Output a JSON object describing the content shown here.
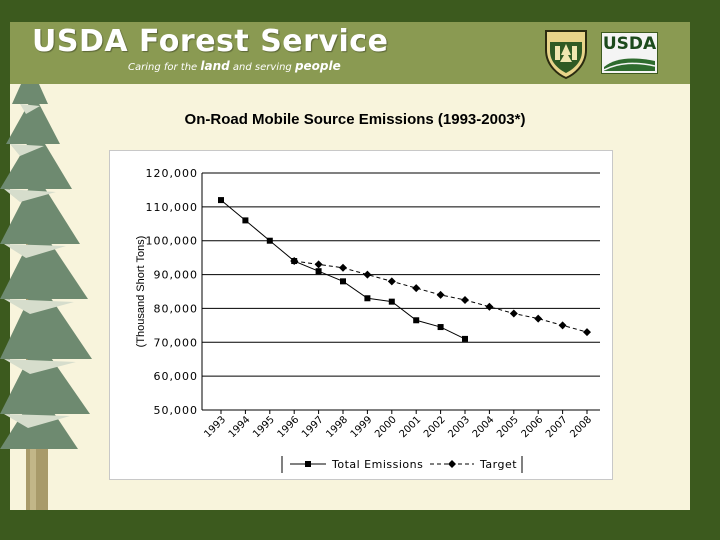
{
  "header": {
    "brand_title": "USDA Forest Service",
    "tagline_parts": [
      "Caring for the ",
      "land",
      " and serving ",
      "people"
    ]
  },
  "logos": {
    "usda_text": "USDA"
  },
  "colors": {
    "frame": "#3c5a1e",
    "header_band": "#8a9a52",
    "content_bg": "#f8f4dc",
    "series_line": "#000000"
  },
  "chart_data": {
    "type": "line",
    "title": "On-Road Mobile Source Emissions (1993-2003*)",
    "xlabel": "",
    "ylabel": "(Thousand Short Tons)",
    "categories": [
      "1993",
      "1994",
      "1995",
      "1996",
      "1997",
      "1998",
      "1999",
      "2000",
      "2001",
      "2002",
      "2003",
      "2004",
      "2005",
      "2006",
      "2007",
      "2008"
    ],
    "y_ticks": [
      "50,000",
      "60,000",
      "70,000",
      "80,000",
      "90,000",
      "100,000",
      "110,000",
      "120,000"
    ],
    "ylim": [
      50000,
      120000
    ],
    "grid": true,
    "legend_position": "bottom",
    "series": [
      {
        "name": "Total Emissions",
        "marker": "square",
        "line_style": "solid",
        "values": [
          112000,
          106000,
          100000,
          94000,
          91000,
          88000,
          83000,
          82000,
          76500,
          74500,
          71000,
          null,
          null,
          null,
          null,
          null
        ]
      },
      {
        "name": "Target",
        "marker": "diamond",
        "line_style": "dashed",
        "values": [
          null,
          null,
          null,
          94000,
          93000,
          92000,
          90000,
          88000,
          86000,
          84000,
          82500,
          80500,
          78500,
          77000,
          75000,
          73000
        ]
      }
    ]
  }
}
